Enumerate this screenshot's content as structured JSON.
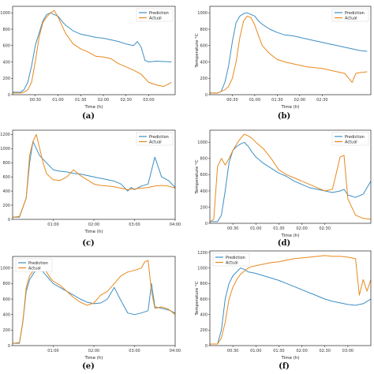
{
  "colors": {
    "prediction": "#3d8fc4",
    "actual": "#e8891d"
  },
  "chart_data": [
    {
      "panel": "(a)",
      "type": "line",
      "xlabel": "Time (h)",
      "ylabel": "",
      "xlim": [
        0,
        215
      ],
      "ylim": [
        0,
        1080
      ],
      "xticks": [
        {
          "v": 30,
          "l": "00:30"
        },
        {
          "v": 60,
          "l": "01:00"
        },
        {
          "v": 90,
          "l": "01:30"
        },
        {
          "v": 120,
          "l": "02:00"
        },
        {
          "v": 150,
          "l": "02:30"
        },
        {
          "v": 180,
          "l": "03:00"
        }
      ],
      "yticks": [
        {
          "v": 0,
          "l": "0"
        },
        {
          "v": 200,
          "l": "200"
        },
        {
          "v": 400,
          "l": "400"
        },
        {
          "v": 600,
          "l": "600"
        },
        {
          "v": 800,
          "l": "800"
        },
        {
          "v": 1000,
          "l": "1000"
        }
      ],
      "legend": "top-right",
      "series": [
        {
          "name": "Prediction",
          "x": [
            0,
            10,
            15,
            20,
            25,
            30,
            35,
            40,
            45,
            50,
            55,
            60,
            65,
            70,
            80,
            90,
            100,
            110,
            120,
            130,
            140,
            150,
            160,
            165,
            170,
            175,
            180,
            190,
            200,
            210
          ],
          "y": [
            30,
            30,
            60,
            150,
            350,
            600,
            750,
            900,
            980,
            1000,
            980,
            960,
            900,
            850,
            780,
            740,
            720,
            700,
            690,
            670,
            650,
            620,
            600,
            650,
            580,
            420,
            400,
            410,
            405,
            400
          ]
        },
        {
          "name": "Actual",
          "x": [
            0,
            10,
            15,
            20,
            25,
            30,
            35,
            40,
            45,
            50,
            55,
            60,
            65,
            70,
            80,
            90,
            100,
            110,
            120,
            130,
            140,
            150,
            160,
            170,
            180,
            190,
            200,
            210
          ],
          "y": [
            20,
            20,
            30,
            60,
            150,
            400,
            700,
            880,
            950,
            1000,
            1030,
            950,
            850,
            750,
            620,
            560,
            520,
            470,
            460,
            440,
            380,
            340,
            300,
            250,
            150,
            120,
            100,
            150
          ]
        }
      ]
    },
    {
      "panel": "(b)",
      "type": "line",
      "xlabel": "Time (h)",
      "ylabel": "Temperature °C",
      "xlim": [
        0,
        215
      ],
      "ylim": [
        0,
        1080
      ],
      "xticks": [
        {
          "v": 30,
          "l": "00:30"
        },
        {
          "v": 60,
          "l": "01:00"
        },
        {
          "v": 90,
          "l": "01:30"
        },
        {
          "v": 120,
          "l": "02:00"
        },
        {
          "v": 150,
          "l": "02:30"
        }
      ],
      "yticks": [
        {
          "v": 0,
          "l": "0"
        },
        {
          "v": 200,
          "l": "200"
        },
        {
          "v": 400,
          "l": "400"
        },
        {
          "v": 600,
          "l": "600"
        },
        {
          "v": 800,
          "l": "800"
        },
        {
          "v": 1000,
          "l": "1000"
        }
      ],
      "legend": "top-right",
      "series": [
        {
          "name": "Prediction",
          "x": [
            0,
            10,
            15,
            20,
            25,
            30,
            35,
            40,
            45,
            50,
            55,
            60,
            65,
            70,
            80,
            90,
            100,
            110,
            120,
            130,
            140,
            150,
            160,
            170,
            180,
            190,
            200,
            210
          ],
          "y": [
            20,
            20,
            40,
            150,
            350,
            650,
            880,
            960,
            990,
            1000,
            980,
            960,
            900,
            860,
            800,
            760,
            730,
            720,
            700,
            680,
            660,
            640,
            620,
            600,
            580,
            560,
            540,
            530
          ]
        },
        {
          "name": "Actual",
          "x": [
            0,
            10,
            15,
            20,
            25,
            30,
            35,
            40,
            45,
            50,
            55,
            60,
            65,
            70,
            80,
            90,
            100,
            110,
            120,
            130,
            140,
            150,
            160,
            170,
            180,
            190,
            195,
            200,
            210
          ],
          "y": [
            20,
            20,
            40,
            60,
            100,
            200,
            400,
            700,
            900,
            960,
            940,
            850,
            720,
            600,
            500,
            430,
            400,
            380,
            360,
            340,
            330,
            320,
            300,
            280,
            260,
            150,
            260,
            270,
            280
          ]
        }
      ]
    },
    {
      "panel": "(c)",
      "type": "line",
      "xlabel": "Time (h)",
      "ylabel": "",
      "xlim": [
        0,
        240
      ],
      "ylim": [
        0,
        1260
      ],
      "xticks": [
        {
          "v": 60,
          "l": "01:00"
        },
        {
          "v": 120,
          "l": "02:00"
        },
        {
          "v": 180,
          "l": "03:00"
        },
        {
          "v": 240,
          "l": "04:00"
        }
      ],
      "yticks": [
        {
          "v": 0,
          "l": "0"
        },
        {
          "v": 200,
          "l": "200"
        },
        {
          "v": 400,
          "l": "400"
        },
        {
          "v": 600,
          "l": "600"
        },
        {
          "v": 800,
          "l": "800"
        },
        {
          "v": 1000,
          "l": "1000"
        },
        {
          "v": 1200,
          "l": "1200"
        }
      ],
      "legend": "top-right",
      "series": [
        {
          "name": "Prediction",
          "x": [
            0,
            10,
            20,
            25,
            30,
            35,
            40,
            45,
            50,
            55,
            60,
            70,
            80,
            90,
            100,
            110,
            120,
            130,
            140,
            150,
            160,
            170,
            175,
            180,
            190,
            200,
            210,
            220,
            230,
            240,
            250,
            260
          ],
          "y": [
            30,
            30,
            300,
            800,
            1100,
            1000,
            900,
            850,
            800,
            750,
            700,
            680,
            670,
            650,
            640,
            620,
            600,
            580,
            560,
            540,
            500,
            400,
            450,
            420,
            470,
            500,
            880,
            600,
            550,
            450,
            380,
            320
          ]
        },
        {
          "name": "Actual",
          "x": [
            0,
            10,
            20,
            25,
            30,
            35,
            40,
            45,
            50,
            55,
            60,
            70,
            80,
            90,
            100,
            110,
            120,
            130,
            140,
            150,
            160,
            170,
            180,
            190,
            200,
            210,
            220,
            230,
            240,
            250,
            260
          ],
          "y": [
            30,
            40,
            300,
            900,
            1100,
            1200,
            1000,
            800,
            650,
            600,
            560,
            550,
            600,
            700,
            620,
            560,
            500,
            480,
            470,
            460,
            440,
            420,
            430,
            440,
            450,
            470,
            480,
            470,
            440,
            380,
            300
          ]
        }
      ]
    },
    {
      "panel": "(d)",
      "type": "line",
      "xlabel": "Time (h)",
      "ylabel": "Temperature °C",
      "xlim": [
        0,
        210
      ],
      "ylim": [
        0,
        1150
      ],
      "xticks": [
        {
          "v": 30,
          "l": "00:30"
        },
        {
          "v": 60,
          "l": "01:00"
        },
        {
          "v": 90,
          "l": "01:30"
        },
        {
          "v": 120,
          "l": "02:00"
        },
        {
          "v": 150,
          "l": "02:30"
        }
      ],
      "yticks": [
        {
          "v": 0,
          "l": "0"
        },
        {
          "v": 200,
          "l": "200"
        },
        {
          "v": 400,
          "l": "400"
        },
        {
          "v": 600,
          "l": "600"
        },
        {
          "v": 800,
          "l": "800"
        },
        {
          "v": 1000,
          "l": "1000"
        }
      ],
      "legend": "top-right",
      "series": [
        {
          "name": "Prediction",
          "x": [
            0,
            10,
            15,
            20,
            25,
            30,
            35,
            40,
            45,
            50,
            55,
            60,
            70,
            80,
            90,
            100,
            110,
            120,
            130,
            140,
            150,
            160,
            170,
            175,
            180,
            190,
            200,
            210
          ],
          "y": [
            20,
            20,
            100,
            400,
            750,
            900,
            950,
            980,
            1000,
            950,
            880,
            820,
            740,
            680,
            620,
            580,
            520,
            480,
            440,
            420,
            400,
            380,
            400,
            420,
            350,
            320,
            360,
            520
          ]
        },
        {
          "name": "Actual",
          "x": [
            0,
            5,
            10,
            15,
            20,
            25,
            30,
            35,
            40,
            45,
            50,
            55,
            60,
            70,
            80,
            90,
            100,
            110,
            120,
            130,
            140,
            150,
            160,
            170,
            175,
            180,
            190,
            200,
            210
          ],
          "y": [
            20,
            50,
            700,
            800,
            720,
            800,
            900,
            980,
            1050,
            1100,
            1080,
            1050,
            1000,
            920,
            800,
            660,
            600,
            560,
            520,
            480,
            440,
            400,
            420,
            820,
            840,
            300,
            100,
            60,
            50
          ]
        }
      ]
    },
    {
      "panel": "(e)",
      "type": "line",
      "xlabel": "Time (h)",
      "ylabel": "",
      "xlim": [
        0,
        240
      ],
      "ylim": [
        0,
        1150
      ],
      "xticks": [
        {
          "v": 60,
          "l": "01:00"
        },
        {
          "v": 120,
          "l": "02:00"
        },
        {
          "v": 180,
          "l": "03:00"
        },
        {
          "v": 240,
          "l": "04:00"
        }
      ],
      "yticks": [
        {
          "v": 0,
          "l": "0"
        },
        {
          "v": 200,
          "l": "200"
        },
        {
          "v": 400,
          "l": "400"
        },
        {
          "v": 600,
          "l": "600"
        },
        {
          "v": 800,
          "l": "800"
        },
        {
          "v": 1000,
          "l": "1000"
        }
      ],
      "legend": "top-left",
      "series": [
        {
          "name": "Prediction",
          "x": [
            0,
            10,
            15,
            20,
            25,
            30,
            35,
            40,
            45,
            50,
            55,
            60,
            70,
            80,
            90,
            100,
            110,
            120,
            130,
            140,
            150,
            160,
            170,
            180,
            190,
            200,
            205,
            210,
            220,
            230,
            240
          ],
          "y": [
            30,
            30,
            300,
            700,
            850,
            920,
            980,
            1000,
            950,
            900,
            850,
            800,
            750,
            700,
            650,
            600,
            560,
            540,
            550,
            600,
            750,
            580,
            420,
            400,
            420,
            450,
            800,
            500,
            480,
            460,
            420
          ]
        },
        {
          "name": "Actual",
          "x": [
            0,
            10,
            15,
            20,
            25,
            30,
            35,
            40,
            45,
            50,
            55,
            60,
            70,
            80,
            90,
            100,
            110,
            120,
            130,
            140,
            150,
            160,
            170,
            180,
            190,
            195,
            200,
            205,
            210,
            220,
            230,
            240
          ],
          "y": [
            30,
            40,
            300,
            750,
            900,
            960,
            1000,
            1050,
            1000,
            950,
            880,
            830,
            780,
            700,
            620,
            560,
            520,
            550,
            650,
            700,
            800,
            900,
            950,
            970,
            1000,
            1080,
            1100,
            700,
            480,
            500,
            470,
            400
          ]
        }
      ]
    },
    {
      "panel": "(f)",
      "type": "line",
      "xlabel": "Time (h)",
      "ylabel": "Temperature °C",
      "xlim": [
        0,
        210
      ],
      "ylim": [
        0,
        1220
      ],
      "xticks": [
        {
          "v": 30,
          "l": "00:30"
        },
        {
          "v": 60,
          "l": "01:00"
        },
        {
          "v": 90,
          "l": "01:30"
        },
        {
          "v": 120,
          "l": "02:00"
        },
        {
          "v": 150,
          "l": "02:30"
        },
        {
          "v": 180,
          "l": "03:00"
        }
      ],
      "yticks": [
        {
          "v": 0,
          "l": "0"
        },
        {
          "v": 200,
          "l": "200"
        },
        {
          "v": 400,
          "l": "400"
        },
        {
          "v": 600,
          "l": "600"
        },
        {
          "v": 800,
          "l": "800"
        },
        {
          "v": 1000,
          "l": "1000"
        },
        {
          "v": 1200,
          "l": "1200"
        }
      ],
      "legend": "top-left",
      "series": [
        {
          "name": "Prediction",
          "x": [
            0,
            10,
            15,
            20,
            25,
            30,
            35,
            40,
            45,
            50,
            55,
            60,
            70,
            80,
            90,
            100,
            110,
            120,
            130,
            140,
            150,
            160,
            170,
            180,
            190,
            200,
            210
          ],
          "y": [
            20,
            20,
            200,
            600,
            800,
            900,
            950,
            1000,
            980,
            950,
            940,
            930,
            900,
            870,
            840,
            800,
            760,
            720,
            680,
            640,
            600,
            570,
            550,
            530,
            520,
            540,
            600
          ]
        },
        {
          "name": "Actual",
          "x": [
            0,
            10,
            15,
            20,
            25,
            30,
            35,
            40,
            45,
            50,
            55,
            60,
            70,
            80,
            90,
            100,
            110,
            120,
            130,
            140,
            150,
            160,
            170,
            180,
            190,
            195,
            200,
            205,
            210
          ],
          "y": [
            20,
            20,
            100,
            300,
            600,
            750,
            850,
            920,
            960,
            1000,
            1020,
            1030,
            1050,
            1070,
            1080,
            1100,
            1120,
            1130,
            1140,
            1150,
            1160,
            1150,
            1150,
            1140,
            1120,
            650,
            850,
            700,
            850
          ]
        }
      ]
    }
  ]
}
